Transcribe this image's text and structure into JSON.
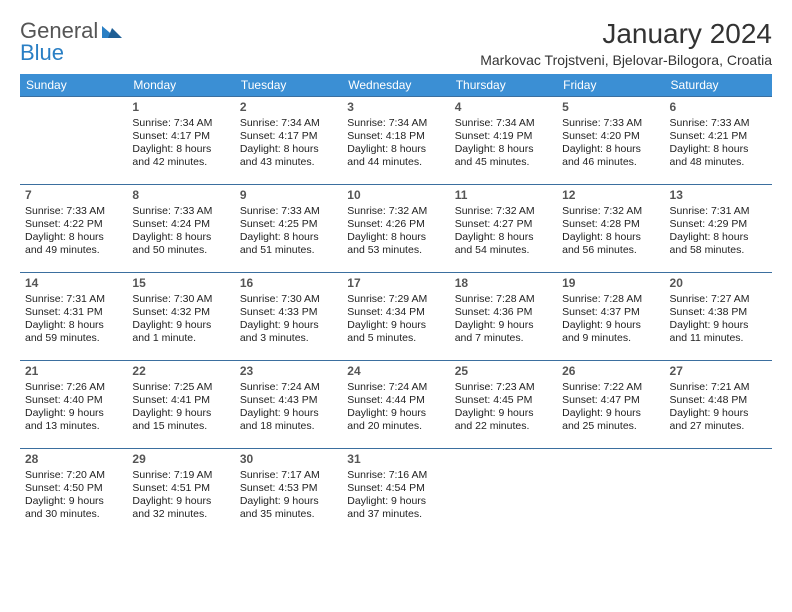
{
  "logo": {
    "part1": "General",
    "part2": "Blue"
  },
  "title": "January 2024",
  "location": "Markovac Trojstveni, Bjelovar-Bilogora, Croatia",
  "colors": {
    "header_bg": "#3b8fd4",
    "header_text": "#ffffff",
    "cell_border": "#3b6f9f",
    "logo_blue": "#2a7fc4",
    "logo_gray": "#555555",
    "text": "#222222",
    "background": "#ffffff"
  },
  "weekdays": [
    "Sunday",
    "Monday",
    "Tuesday",
    "Wednesday",
    "Thursday",
    "Friday",
    "Saturday"
  ],
  "weeks": [
    [
      {
        "day": "",
        "sunrise": "",
        "sunset": "",
        "daylight": ""
      },
      {
        "day": "1",
        "sunrise": "Sunrise: 7:34 AM",
        "sunset": "Sunset: 4:17 PM",
        "daylight": "Daylight: 8 hours and 42 minutes."
      },
      {
        "day": "2",
        "sunrise": "Sunrise: 7:34 AM",
        "sunset": "Sunset: 4:17 PM",
        "daylight": "Daylight: 8 hours and 43 minutes."
      },
      {
        "day": "3",
        "sunrise": "Sunrise: 7:34 AM",
        "sunset": "Sunset: 4:18 PM",
        "daylight": "Daylight: 8 hours and 44 minutes."
      },
      {
        "day": "4",
        "sunrise": "Sunrise: 7:34 AM",
        "sunset": "Sunset: 4:19 PM",
        "daylight": "Daylight: 8 hours and 45 minutes."
      },
      {
        "day": "5",
        "sunrise": "Sunrise: 7:33 AM",
        "sunset": "Sunset: 4:20 PM",
        "daylight": "Daylight: 8 hours and 46 minutes."
      },
      {
        "day": "6",
        "sunrise": "Sunrise: 7:33 AM",
        "sunset": "Sunset: 4:21 PM",
        "daylight": "Daylight: 8 hours and 48 minutes."
      }
    ],
    [
      {
        "day": "7",
        "sunrise": "Sunrise: 7:33 AM",
        "sunset": "Sunset: 4:22 PM",
        "daylight": "Daylight: 8 hours and 49 minutes."
      },
      {
        "day": "8",
        "sunrise": "Sunrise: 7:33 AM",
        "sunset": "Sunset: 4:24 PM",
        "daylight": "Daylight: 8 hours and 50 minutes."
      },
      {
        "day": "9",
        "sunrise": "Sunrise: 7:33 AM",
        "sunset": "Sunset: 4:25 PM",
        "daylight": "Daylight: 8 hours and 51 minutes."
      },
      {
        "day": "10",
        "sunrise": "Sunrise: 7:32 AM",
        "sunset": "Sunset: 4:26 PM",
        "daylight": "Daylight: 8 hours and 53 minutes."
      },
      {
        "day": "11",
        "sunrise": "Sunrise: 7:32 AM",
        "sunset": "Sunset: 4:27 PM",
        "daylight": "Daylight: 8 hours and 54 minutes."
      },
      {
        "day": "12",
        "sunrise": "Sunrise: 7:32 AM",
        "sunset": "Sunset: 4:28 PM",
        "daylight": "Daylight: 8 hours and 56 minutes."
      },
      {
        "day": "13",
        "sunrise": "Sunrise: 7:31 AM",
        "sunset": "Sunset: 4:29 PM",
        "daylight": "Daylight: 8 hours and 58 minutes."
      }
    ],
    [
      {
        "day": "14",
        "sunrise": "Sunrise: 7:31 AM",
        "sunset": "Sunset: 4:31 PM",
        "daylight": "Daylight: 8 hours and 59 minutes."
      },
      {
        "day": "15",
        "sunrise": "Sunrise: 7:30 AM",
        "sunset": "Sunset: 4:32 PM",
        "daylight": "Daylight: 9 hours and 1 minute."
      },
      {
        "day": "16",
        "sunrise": "Sunrise: 7:30 AM",
        "sunset": "Sunset: 4:33 PM",
        "daylight": "Daylight: 9 hours and 3 minutes."
      },
      {
        "day": "17",
        "sunrise": "Sunrise: 7:29 AM",
        "sunset": "Sunset: 4:34 PM",
        "daylight": "Daylight: 9 hours and 5 minutes."
      },
      {
        "day": "18",
        "sunrise": "Sunrise: 7:28 AM",
        "sunset": "Sunset: 4:36 PM",
        "daylight": "Daylight: 9 hours and 7 minutes."
      },
      {
        "day": "19",
        "sunrise": "Sunrise: 7:28 AM",
        "sunset": "Sunset: 4:37 PM",
        "daylight": "Daylight: 9 hours and 9 minutes."
      },
      {
        "day": "20",
        "sunrise": "Sunrise: 7:27 AM",
        "sunset": "Sunset: 4:38 PM",
        "daylight": "Daylight: 9 hours and 11 minutes."
      }
    ],
    [
      {
        "day": "21",
        "sunrise": "Sunrise: 7:26 AM",
        "sunset": "Sunset: 4:40 PM",
        "daylight": "Daylight: 9 hours and 13 minutes."
      },
      {
        "day": "22",
        "sunrise": "Sunrise: 7:25 AM",
        "sunset": "Sunset: 4:41 PM",
        "daylight": "Daylight: 9 hours and 15 minutes."
      },
      {
        "day": "23",
        "sunrise": "Sunrise: 7:24 AM",
        "sunset": "Sunset: 4:43 PM",
        "daylight": "Daylight: 9 hours and 18 minutes."
      },
      {
        "day": "24",
        "sunrise": "Sunrise: 7:24 AM",
        "sunset": "Sunset: 4:44 PM",
        "daylight": "Daylight: 9 hours and 20 minutes."
      },
      {
        "day": "25",
        "sunrise": "Sunrise: 7:23 AM",
        "sunset": "Sunset: 4:45 PM",
        "daylight": "Daylight: 9 hours and 22 minutes."
      },
      {
        "day": "26",
        "sunrise": "Sunrise: 7:22 AM",
        "sunset": "Sunset: 4:47 PM",
        "daylight": "Daylight: 9 hours and 25 minutes."
      },
      {
        "day": "27",
        "sunrise": "Sunrise: 7:21 AM",
        "sunset": "Sunset: 4:48 PM",
        "daylight": "Daylight: 9 hours and 27 minutes."
      }
    ],
    [
      {
        "day": "28",
        "sunrise": "Sunrise: 7:20 AM",
        "sunset": "Sunset: 4:50 PM",
        "daylight": "Daylight: 9 hours and 30 minutes."
      },
      {
        "day": "29",
        "sunrise": "Sunrise: 7:19 AM",
        "sunset": "Sunset: 4:51 PM",
        "daylight": "Daylight: 9 hours and 32 minutes."
      },
      {
        "day": "30",
        "sunrise": "Sunrise: 7:17 AM",
        "sunset": "Sunset: 4:53 PM",
        "daylight": "Daylight: 9 hours and 35 minutes."
      },
      {
        "day": "31",
        "sunrise": "Sunrise: 7:16 AM",
        "sunset": "Sunset: 4:54 PM",
        "daylight": "Daylight: 9 hours and 37 minutes."
      },
      {
        "day": "",
        "sunrise": "",
        "sunset": "",
        "daylight": ""
      },
      {
        "day": "",
        "sunrise": "",
        "sunset": "",
        "daylight": ""
      },
      {
        "day": "",
        "sunrise": "",
        "sunset": "",
        "daylight": ""
      }
    ]
  ]
}
